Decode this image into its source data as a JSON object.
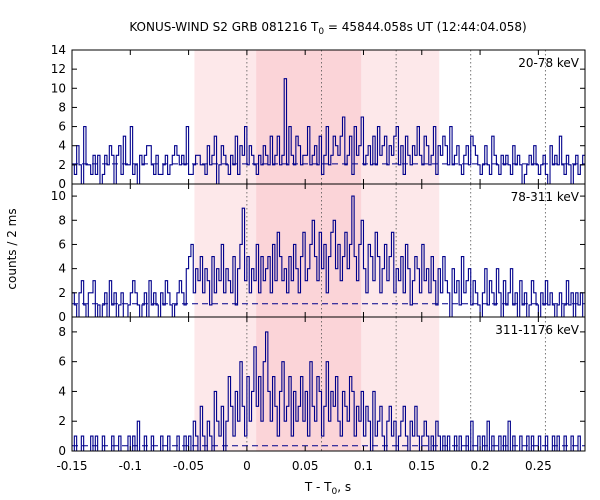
{
  "chart_data": {
    "type": "line",
    "title": "KONUS-WIND S2 GRB 081216 T",
    "title_sub": "0",
    "title_rest": " = 45844.058s UT (12:44:04.058)",
    "xlabel": "T - T",
    "xlabel_sub": "0",
    "xlabel_rest": ", s",
    "ylabel": "counts / 2 ms",
    "xlim": [
      -0.15,
      0.29
    ],
    "x_ticks": [
      -0.15,
      -0.1,
      -0.05,
      0,
      0.05,
      0.1,
      0.15,
      0.2,
      0.25
    ],
    "x_tick_labels": [
      "-0.15",
      "-0.1",
      "-0.05",
      "0",
      "0.05",
      "0.1",
      "0.15",
      "0.2",
      "0.25"
    ],
    "bin_width": 0.002,
    "colors": {
      "series": "#00008B",
      "light_band": "#FDE8EA",
      "dark_band": "#FBD4D8"
    },
    "light_band": [
      -0.045,
      0.165
    ],
    "dark_band": [
      0.008,
      0.098
    ],
    "vlines": [
      0,
      0.064,
      0.128,
      0.192,
      0.256
    ],
    "panels": [
      {
        "label": "20-78 keV",
        "ylim": [
          0,
          14
        ],
        "y_ticks": [
          0,
          2,
          4,
          6,
          8,
          10,
          12,
          14
        ],
        "background": 2.1,
        "counts": [
          2,
          1,
          4,
          2,
          0,
          6,
          2,
          2,
          1,
          3,
          1,
          3,
          0,
          1,
          3,
          2,
          4,
          3,
          0,
          3,
          4,
          1,
          5,
          2,
          2,
          6,
          1,
          2,
          0,
          3,
          2,
          3,
          4,
          4,
          2,
          1,
          3,
          1,
          1,
          2,
          3,
          1,
          2,
          3,
          4,
          3,
          2,
          3,
          2,
          6,
          1,
          1,
          2,
          3,
          3,
          2,
          2,
          1,
          4,
          2,
          3,
          5,
          0,
          2,
          4,
          3,
          2,
          1,
          3,
          2,
          5,
          1,
          4,
          3,
          6,
          2,
          4,
          3,
          2,
          1,
          3,
          2,
          4,
          3,
          2,
          5,
          2,
          3,
          5,
          2,
          3,
          11,
          2,
          6,
          3,
          2,
          5,
          4,
          2,
          3,
          3,
          6,
          2,
          3,
          4,
          2,
          5,
          1,
          3,
          6,
          2,
          3,
          5,
          4,
          3,
          5,
          7,
          2,
          3,
          5,
          1,
          6,
          3,
          4,
          7,
          2,
          3,
          4,
          2,
          5,
          2,
          6,
          3,
          4,
          5,
          2,
          4,
          3,
          5,
          6,
          2,
          4,
          1,
          5,
          3,
          2,
          4,
          3,
          6,
          3,
          2,
          5,
          4,
          2,
          3,
          6,
          1,
          4,
          3,
          5,
          4,
          2,
          6,
          2,
          3,
          4,
          2,
          1,
          3,
          4,
          2,
          5,
          4,
          3,
          2,
          1,
          2,
          4,
          2,
          1,
          5,
          3,
          2,
          1,
          3,
          2,
          3,
          2,
          1,
          4,
          2,
          3,
          2,
          0,
          1,
          2,
          3,
          2,
          4,
          2,
          1,
          2,
          3,
          1,
          0,
          4,
          2,
          3,
          2,
          5,
          2,
          1,
          3,
          2,
          0,
          2,
          3,
          1,
          2,
          3,
          1,
          2,
          2
        ]
      },
      {
        "label": "78-311 keV",
        "ylim": [
          0,
          11
        ],
        "y_ticks": [
          0,
          2,
          4,
          6,
          8,
          10
        ],
        "background": 1.1,
        "counts": [
          2,
          1,
          0,
          2,
          3,
          1,
          0,
          2,
          2,
          3,
          0,
          1,
          0,
          1,
          2,
          0,
          3,
          1,
          2,
          0,
          1,
          2,
          0,
          0,
          1,
          2,
          3,
          2,
          1,
          0,
          1,
          2,
          0,
          3,
          1,
          2,
          1,
          0,
          2,
          1,
          3,
          2,
          1,
          0,
          1,
          2,
          3,
          2,
          1,
          4,
          5,
          6,
          2,
          4,
          3,
          5,
          2,
          4,
          3,
          1,
          5,
          2,
          4,
          3,
          6,
          2,
          4,
          3,
          2,
          5,
          1,
          4,
          6,
          9,
          3,
          5,
          2,
          4,
          3,
          6,
          2,
          5,
          3,
          4,
          5,
          2,
          6,
          3,
          7,
          5,
          3,
          4,
          2,
          5,
          3,
          6,
          4,
          2,
          5,
          7,
          3,
          4,
          6,
          8,
          5,
          3,
          7,
          4,
          6,
          2,
          5,
          7,
          8,
          4,
          6,
          3,
          5,
          7,
          4,
          6,
          10,
          5,
          3,
          6,
          8,
          4,
          2,
          6,
          5,
          3,
          7,
          5,
          2,
          4,
          6,
          3,
          5,
          7,
          2,
          4,
          3,
          5,
          2,
          6,
          4,
          1,
          3,
          5,
          4,
          2,
          6,
          3,
          4,
          2,
          5,
          3,
          1,
          4,
          2,
          5,
          3,
          2,
          0,
          4,
          2,
          3,
          1,
          5,
          2,
          3,
          4,
          1,
          3,
          2,
          1,
          0,
          2,
          4,
          1,
          3,
          2,
          1,
          4,
          2,
          0,
          3,
          1,
          2,
          4,
          1,
          2,
          0,
          3,
          1,
          2,
          0,
          1,
          3,
          2,
          1,
          0,
          2,
          1,
          3,
          1,
          2,
          1,
          0,
          1,
          2,
          0,
          1,
          3,
          1,
          2,
          0,
          2,
          1,
          2,
          0,
          1,
          2,
          1
        ]
      },
      {
        "label": "311-1176 keV",
        "ylim": [
          0,
          9
        ],
        "y_ticks": [
          0,
          2,
          4,
          6,
          8
        ],
        "background": 0.35,
        "counts": [
          0,
          1,
          0,
          0,
          1,
          0,
          0,
          0,
          1,
          0,
          1,
          0,
          0,
          1,
          0,
          0,
          0,
          1,
          0,
          0,
          1,
          0,
          0,
          0,
          1,
          0,
          1,
          0,
          2,
          0,
          0,
          1,
          0,
          0,
          1,
          0,
          0,
          0,
          1,
          0,
          0,
          1,
          0,
          0,
          0,
          1,
          0,
          0,
          1,
          0,
          1,
          0,
          2,
          1,
          0,
          3,
          1,
          0,
          2,
          1,
          0,
          4,
          2,
          1,
          3,
          0,
          2,
          5,
          3,
          1,
          4,
          2,
          6,
          3,
          1,
          5,
          2,
          4,
          7,
          3,
          5,
          2,
          6,
          8,
          4,
          2,
          5,
          3,
          1,
          4,
          6,
          2,
          3,
          5,
          1,
          4,
          2,
          3,
          5,
          2,
          4,
          1,
          6,
          3,
          2,
          5,
          4,
          1,
          3,
          6,
          2,
          4,
          3,
          5,
          2,
          1,
          4,
          3,
          2,
          5,
          4,
          1,
          3,
          2,
          4,
          1,
          3,
          2,
          0,
          4,
          1,
          2,
          3,
          1,
          0,
          2,
          3,
          1,
          2,
          0,
          1,
          2,
          3,
          1,
          0,
          2,
          1,
          3,
          1,
          0,
          1,
          2,
          1,
          0,
          1,
          0,
          2,
          1,
          0,
          1,
          0,
          1,
          0,
          0,
          1,
          0,
          1,
          0,
          0,
          1,
          0,
          2,
          0,
          0,
          1,
          0,
          1,
          0,
          2,
          0,
          1,
          0,
          0,
          1,
          0,
          1,
          0,
          2,
          0,
          1,
          0,
          0,
          1,
          0,
          0,
          1,
          0,
          1,
          0,
          0,
          1,
          0,
          0,
          1,
          0,
          0,
          1,
          0,
          1,
          0,
          0,
          1,
          0,
          0,
          1,
          0,
          0,
          1,
          0,
          0,
          1,
          0
        ]
      }
    ]
  }
}
